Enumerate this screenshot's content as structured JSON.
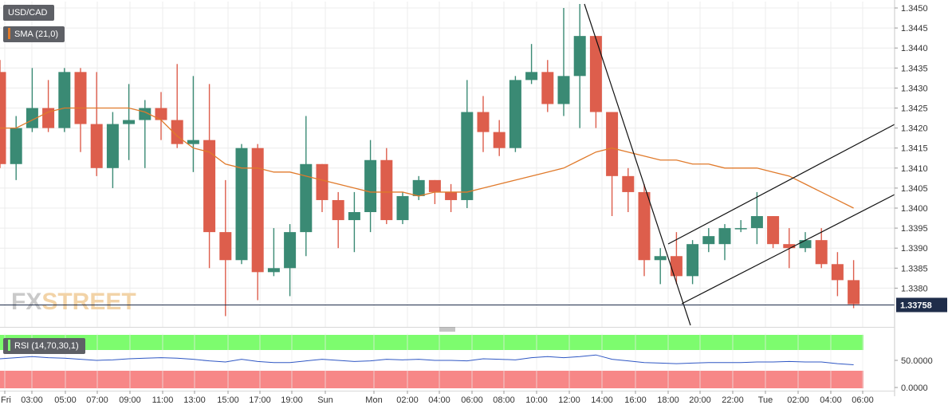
{
  "legend": {
    "symbol": "USD/CAD",
    "sma_label": "SMA (21,0)",
    "rsi_label": "RSI (14,70,30,1)"
  },
  "last_price_tag": "1.33758",
  "watermark": "FXSTREET",
  "colors": {
    "up": "#3a8a74",
    "down": "#dd5e4c",
    "sma": "#e07a2b",
    "rsi_line": "#2f57c4",
    "rsi_overbought": "#7dfc6e",
    "rsi_oversold": "#f78787",
    "price_tag": "#1f2d4a"
  },
  "chart_data": [
    {
      "type": "candlestick",
      "title": "USD/CAD",
      "y_ticks": [
        "1.3450",
        "1.3445",
        "1.3440",
        "1.3435",
        "1.3430",
        "1.3425",
        "1.3420",
        "1.3415",
        "1.3410",
        "1.3405",
        "1.3400",
        "1.3395",
        "1.3390",
        "1.3385",
        "1.3380"
      ],
      "ylim": [
        1.3368,
        1.3452
      ],
      "x_ticks": [
        "Fri",
        "03:00",
        "05:00",
        "07:00",
        "09:00",
        "11:00",
        "13:00",
        "15:00",
        "17:00",
        "19:00",
        "Sun",
        "Mon",
        "02:00",
        "04:00",
        "06:00",
        "08:00",
        "10:00",
        "12:00",
        "14:00",
        "16:00",
        "18:00",
        "20:00",
        "22:00",
        "Tue",
        "02:00",
        "04:00",
        "06:00"
      ],
      "last_price": 1.33758,
      "candles": [
        {
          "o": 1.3434,
          "h": 1.3437,
          "l": 1.341,
          "c": 1.3411
        },
        {
          "o": 1.3411,
          "h": 1.3423,
          "l": 1.3407,
          "c": 1.342
        },
        {
          "o": 1.342,
          "h": 1.3435,
          "l": 1.3419,
          "c": 1.3425
        },
        {
          "o": 1.3425,
          "h": 1.3432,
          "l": 1.3419,
          "c": 1.342
        },
        {
          "o": 1.342,
          "h": 1.3435,
          "l": 1.3419,
          "c": 1.3434
        },
        {
          "o": 1.3434,
          "h": 1.3435,
          "l": 1.3414,
          "c": 1.3421
        },
        {
          "o": 1.3421,
          "h": 1.3434,
          "l": 1.3408,
          "c": 1.341
        },
        {
          "o": 1.341,
          "h": 1.3424,
          "l": 1.3405,
          "c": 1.3421
        },
        {
          "o": 1.3421,
          "h": 1.3431,
          "l": 1.3412,
          "c": 1.3422
        },
        {
          "o": 1.3422,
          "h": 1.3427,
          "l": 1.341,
          "c": 1.3425
        },
        {
          "o": 1.3425,
          "h": 1.3429,
          "l": 1.3417,
          "c": 1.3422
        },
        {
          "o": 1.3422,
          "h": 1.3436,
          "l": 1.3415,
          "c": 1.3416
        },
        {
          "o": 1.3416,
          "h": 1.3433,
          "l": 1.3409,
          "c": 1.3417
        },
        {
          "o": 1.3417,
          "h": 1.3431,
          "l": 1.3385,
          "c": 1.3394
        },
        {
          "o": 1.3394,
          "h": 1.3407,
          "l": 1.3373,
          "c": 1.3387
        },
        {
          "o": 1.3387,
          "h": 1.3416,
          "l": 1.3386,
          "c": 1.3415
        },
        {
          "o": 1.3415,
          "h": 1.3416,
          "l": 1.3377,
          "c": 1.3384
        },
        {
          "o": 1.3384,
          "h": 1.3395,
          "l": 1.3383,
          "c": 1.3385
        },
        {
          "o": 1.3385,
          "h": 1.3396,
          "l": 1.3378,
          "c": 1.3394
        },
        {
          "o": 1.3394,
          "h": 1.3423,
          "l": 1.3388,
          "c": 1.3411
        },
        {
          "o": 1.3411,
          "h": 1.3411,
          "l": 1.3399,
          "c": 1.3402
        },
        {
          "o": 1.3402,
          "h": 1.3404,
          "l": 1.339,
          "c": 1.3397
        },
        {
          "o": 1.3397,
          "h": 1.3404,
          "l": 1.3389,
          "c": 1.3399
        },
        {
          "o": 1.3399,
          "h": 1.3417,
          "l": 1.3394,
          "c": 1.3412
        },
        {
          "o": 1.3412,
          "h": 1.3415,
          "l": 1.3396,
          "c": 1.3397
        },
        {
          "o": 1.3397,
          "h": 1.3404,
          "l": 1.3396,
          "c": 1.3403
        },
        {
          "o": 1.3403,
          "h": 1.3408,
          "l": 1.3402,
          "c": 1.3407
        },
        {
          "o": 1.3407,
          "h": 1.3407,
          "l": 1.3401,
          "c": 1.3404
        },
        {
          "o": 1.3404,
          "h": 1.3406,
          "l": 1.3399,
          "c": 1.3402
        },
        {
          "o": 1.3402,
          "h": 1.3432,
          "l": 1.34,
          "c": 1.3424
        },
        {
          "o": 1.3424,
          "h": 1.3428,
          "l": 1.3414,
          "c": 1.3419
        },
        {
          "o": 1.3419,
          "h": 1.3422,
          "l": 1.3413,
          "c": 1.3415
        },
        {
          "o": 1.3415,
          "h": 1.3433,
          "l": 1.3414,
          "c": 1.3432
        },
        {
          "o": 1.3432,
          "h": 1.3441,
          "l": 1.3431,
          "c": 1.3434
        },
        {
          "o": 1.3434,
          "h": 1.3437,
          "l": 1.3424,
          "c": 1.3426
        },
        {
          "o": 1.3426,
          "h": 1.345,
          "l": 1.3423,
          "c": 1.3433
        },
        {
          "o": 1.3433,
          "h": 1.3451,
          "l": 1.342,
          "c": 1.3443
        },
        {
          "o": 1.3443,
          "h": 1.3443,
          "l": 1.342,
          "c": 1.3424
        },
        {
          "o": 1.3424,
          "h": 1.3424,
          "l": 1.3398,
          "c": 1.3408
        },
        {
          "o": 1.3408,
          "h": 1.341,
          "l": 1.3399,
          "c": 1.3404
        },
        {
          "o": 1.3404,
          "h": 1.3406,
          "l": 1.3383,
          "c": 1.3387
        },
        {
          "o": 1.3387,
          "h": 1.339,
          "l": 1.3381,
          "c": 1.3388
        },
        {
          "o": 1.3388,
          "h": 1.3394,
          "l": 1.3381,
          "c": 1.3383
        },
        {
          "o": 1.3383,
          "h": 1.3392,
          "l": 1.3381,
          "c": 1.3391
        },
        {
          "o": 1.3391,
          "h": 1.3395,
          "l": 1.3389,
          "c": 1.3393
        },
        {
          "o": 1.3391,
          "h": 1.3396,
          "l": 1.3387,
          "c": 1.3395
        },
        {
          "o": 1.3395,
          "h": 1.3397,
          "l": 1.3394,
          "c": 1.3395
        },
        {
          "o": 1.3395,
          "h": 1.3404,
          "l": 1.3391,
          "c": 1.3398
        },
        {
          "o": 1.3398,
          "h": 1.3398,
          "l": 1.339,
          "c": 1.3391
        },
        {
          "o": 1.3391,
          "h": 1.3395,
          "l": 1.3385,
          "c": 1.339
        },
        {
          "o": 1.339,
          "h": 1.3394,
          "l": 1.3389,
          "c": 1.3392
        },
        {
          "o": 1.3392,
          "h": 1.3395,
          "l": 1.3385,
          "c": 1.3386
        },
        {
          "o": 1.3386,
          "h": 1.3389,
          "l": 1.3378,
          "c": 1.3382
        },
        {
          "o": 1.3382,
          "h": 1.3387,
          "l": 1.3375,
          "c": 1.3376
        }
      ],
      "sma": [
        1.342,
        1.342,
        1.3422,
        1.3424,
        1.3425,
        1.3425,
        1.3425,
        1.3425,
        1.3425,
        1.3424,
        1.3422,
        1.3418,
        1.3415,
        1.3414,
        1.3411,
        1.341,
        1.341,
        1.3409,
        1.3409,
        1.3408,
        1.3407,
        1.3406,
        1.3405,
        1.3404,
        1.3404,
        1.3404,
        1.3403,
        1.3404,
        1.3404,
        1.3404,
        1.3405,
        1.3406,
        1.3407,
        1.3408,
        1.3409,
        1.341,
        1.3412,
        1.3414,
        1.3415,
        1.3414,
        1.3413,
        1.3412,
        1.3412,
        1.3411,
        1.3411,
        1.341,
        1.341,
        1.341,
        1.3409,
        1.3408,
        1.3406,
        1.3404,
        1.3402,
        1.34
      ]
    },
    {
      "type": "line",
      "title": "RSI (14,70,30,1)",
      "y_ticks": [
        "50.0000",
        "0.0000"
      ],
      "ylim": [
        0,
        100
      ],
      "overbought": 70,
      "oversold": 30,
      "values": [
        53,
        55,
        57,
        55,
        54,
        52,
        50,
        51,
        53,
        54,
        55,
        54,
        52,
        49,
        47,
        52,
        48,
        46,
        46,
        49,
        52,
        50,
        48,
        49,
        52,
        51,
        52,
        50,
        50,
        49,
        53,
        52,
        51,
        55,
        57,
        55,
        57,
        60,
        52,
        49,
        46,
        45,
        44,
        45,
        46,
        46,
        46,
        47,
        47,
        48,
        47,
        47,
        44,
        42
      ]
    }
  ]
}
